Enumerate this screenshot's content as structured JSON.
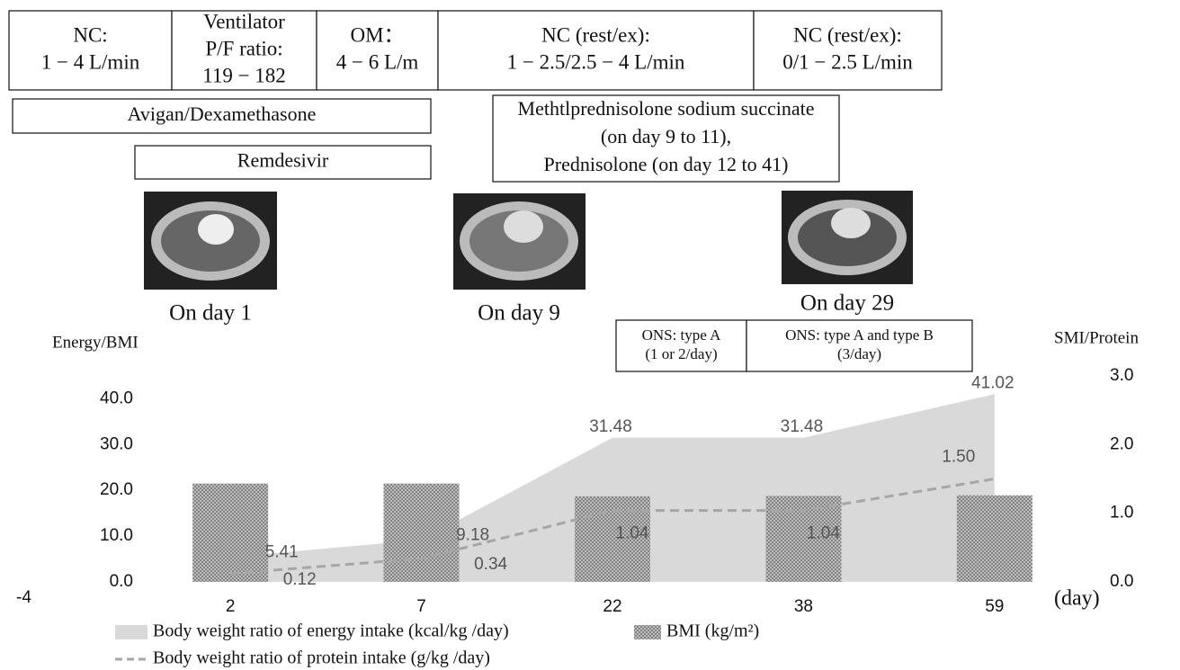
{
  "timeline": {
    "boxes": [
      {
        "lines": [
          "NC:",
          "1 − 4 L/min"
        ]
      },
      {
        "lines": [
          "Ventilator",
          "P/F ratio:",
          "119 − 182"
        ]
      },
      {
        "lines": [
          "OM：",
          "4 − 6 L/m"
        ]
      },
      {
        "lines": [
          "NC (rest/ex):",
          "1 − 2.5/2.5 − 4 L/min"
        ]
      },
      {
        "lines": [
          "NC (rest/ex):",
          "0/1 − 2.5 L/min"
        ]
      }
    ]
  },
  "treatments": [
    {
      "lines": [
        "Avigan/Dexamethasone"
      ]
    },
    {
      "lines": [
        "Remdesivir"
      ]
    },
    {
      "lines": [
        "Methtlprednisolone sodium succinate",
        "(on day 9 to 11),",
        "Prednisolone (on day 12 to 41)"
      ]
    }
  ],
  "images": [
    {
      "caption": "On day 1"
    },
    {
      "caption": "On day 9"
    },
    {
      "caption": "On day 29"
    }
  ],
  "supplements": [
    {
      "lines": [
        "ONS: type A",
        "(1 or 2/day)"
      ]
    },
    {
      "lines": [
        "ONS: type A and type B",
        "(3/day)"
      ]
    }
  ],
  "chart_data": {
    "type": "combo",
    "y_label": "Energy/BMI",
    "y2_label": "SMI/Protein",
    "x_label": "(day)",
    "annotation": "-4",
    "categories": [
      "2",
      "7",
      "22",
      "38",
      "59"
    ],
    "ylim": [
      0,
      45
    ],
    "yticks": [
      {
        "value": 0,
        "label": "0.0"
      },
      {
        "value": 10,
        "label": "10.0"
      },
      {
        "value": 20,
        "label": "20.0"
      },
      {
        "value": 30,
        "label": "30.0"
      },
      {
        "value": 40,
        "label": "40.0"
      }
    ],
    "y2lim": [
      0,
      3
    ],
    "y2ticks": [
      {
        "value": 0,
        "label": "0.0"
      },
      {
        "value": 1,
        "label": "1.0"
      },
      {
        "value": 2,
        "label": "2.0"
      },
      {
        "value": 3,
        "label": "3.0"
      }
    ],
    "series": [
      {
        "name": "Body weight ratio of energy intake (kcal/kg /day)",
        "kind": "area",
        "color": "#d9d9d9",
        "values": [
          5.41,
          9.18,
          31.48,
          31.48,
          41.02
        ]
      },
      {
        "name": "BMI (kg/m²)",
        "kind": "bar",
        "color": "#bfbfbf",
        "values": [
          21.5,
          21.5,
          18.7,
          18.8,
          18.9
        ]
      },
      {
        "name": "Body weight ratio of protein intake (g/kg /day)",
        "kind": "line",
        "axis": "y2",
        "color": "#a6a6a6",
        "values": [
          0.12,
          0.34,
          1.04,
          1.04,
          1.5
        ],
        "value_labels": [
          "0.12",
          "0.34",
          "1.04",
          "1.04",
          "1.50"
        ]
      }
    ]
  }
}
